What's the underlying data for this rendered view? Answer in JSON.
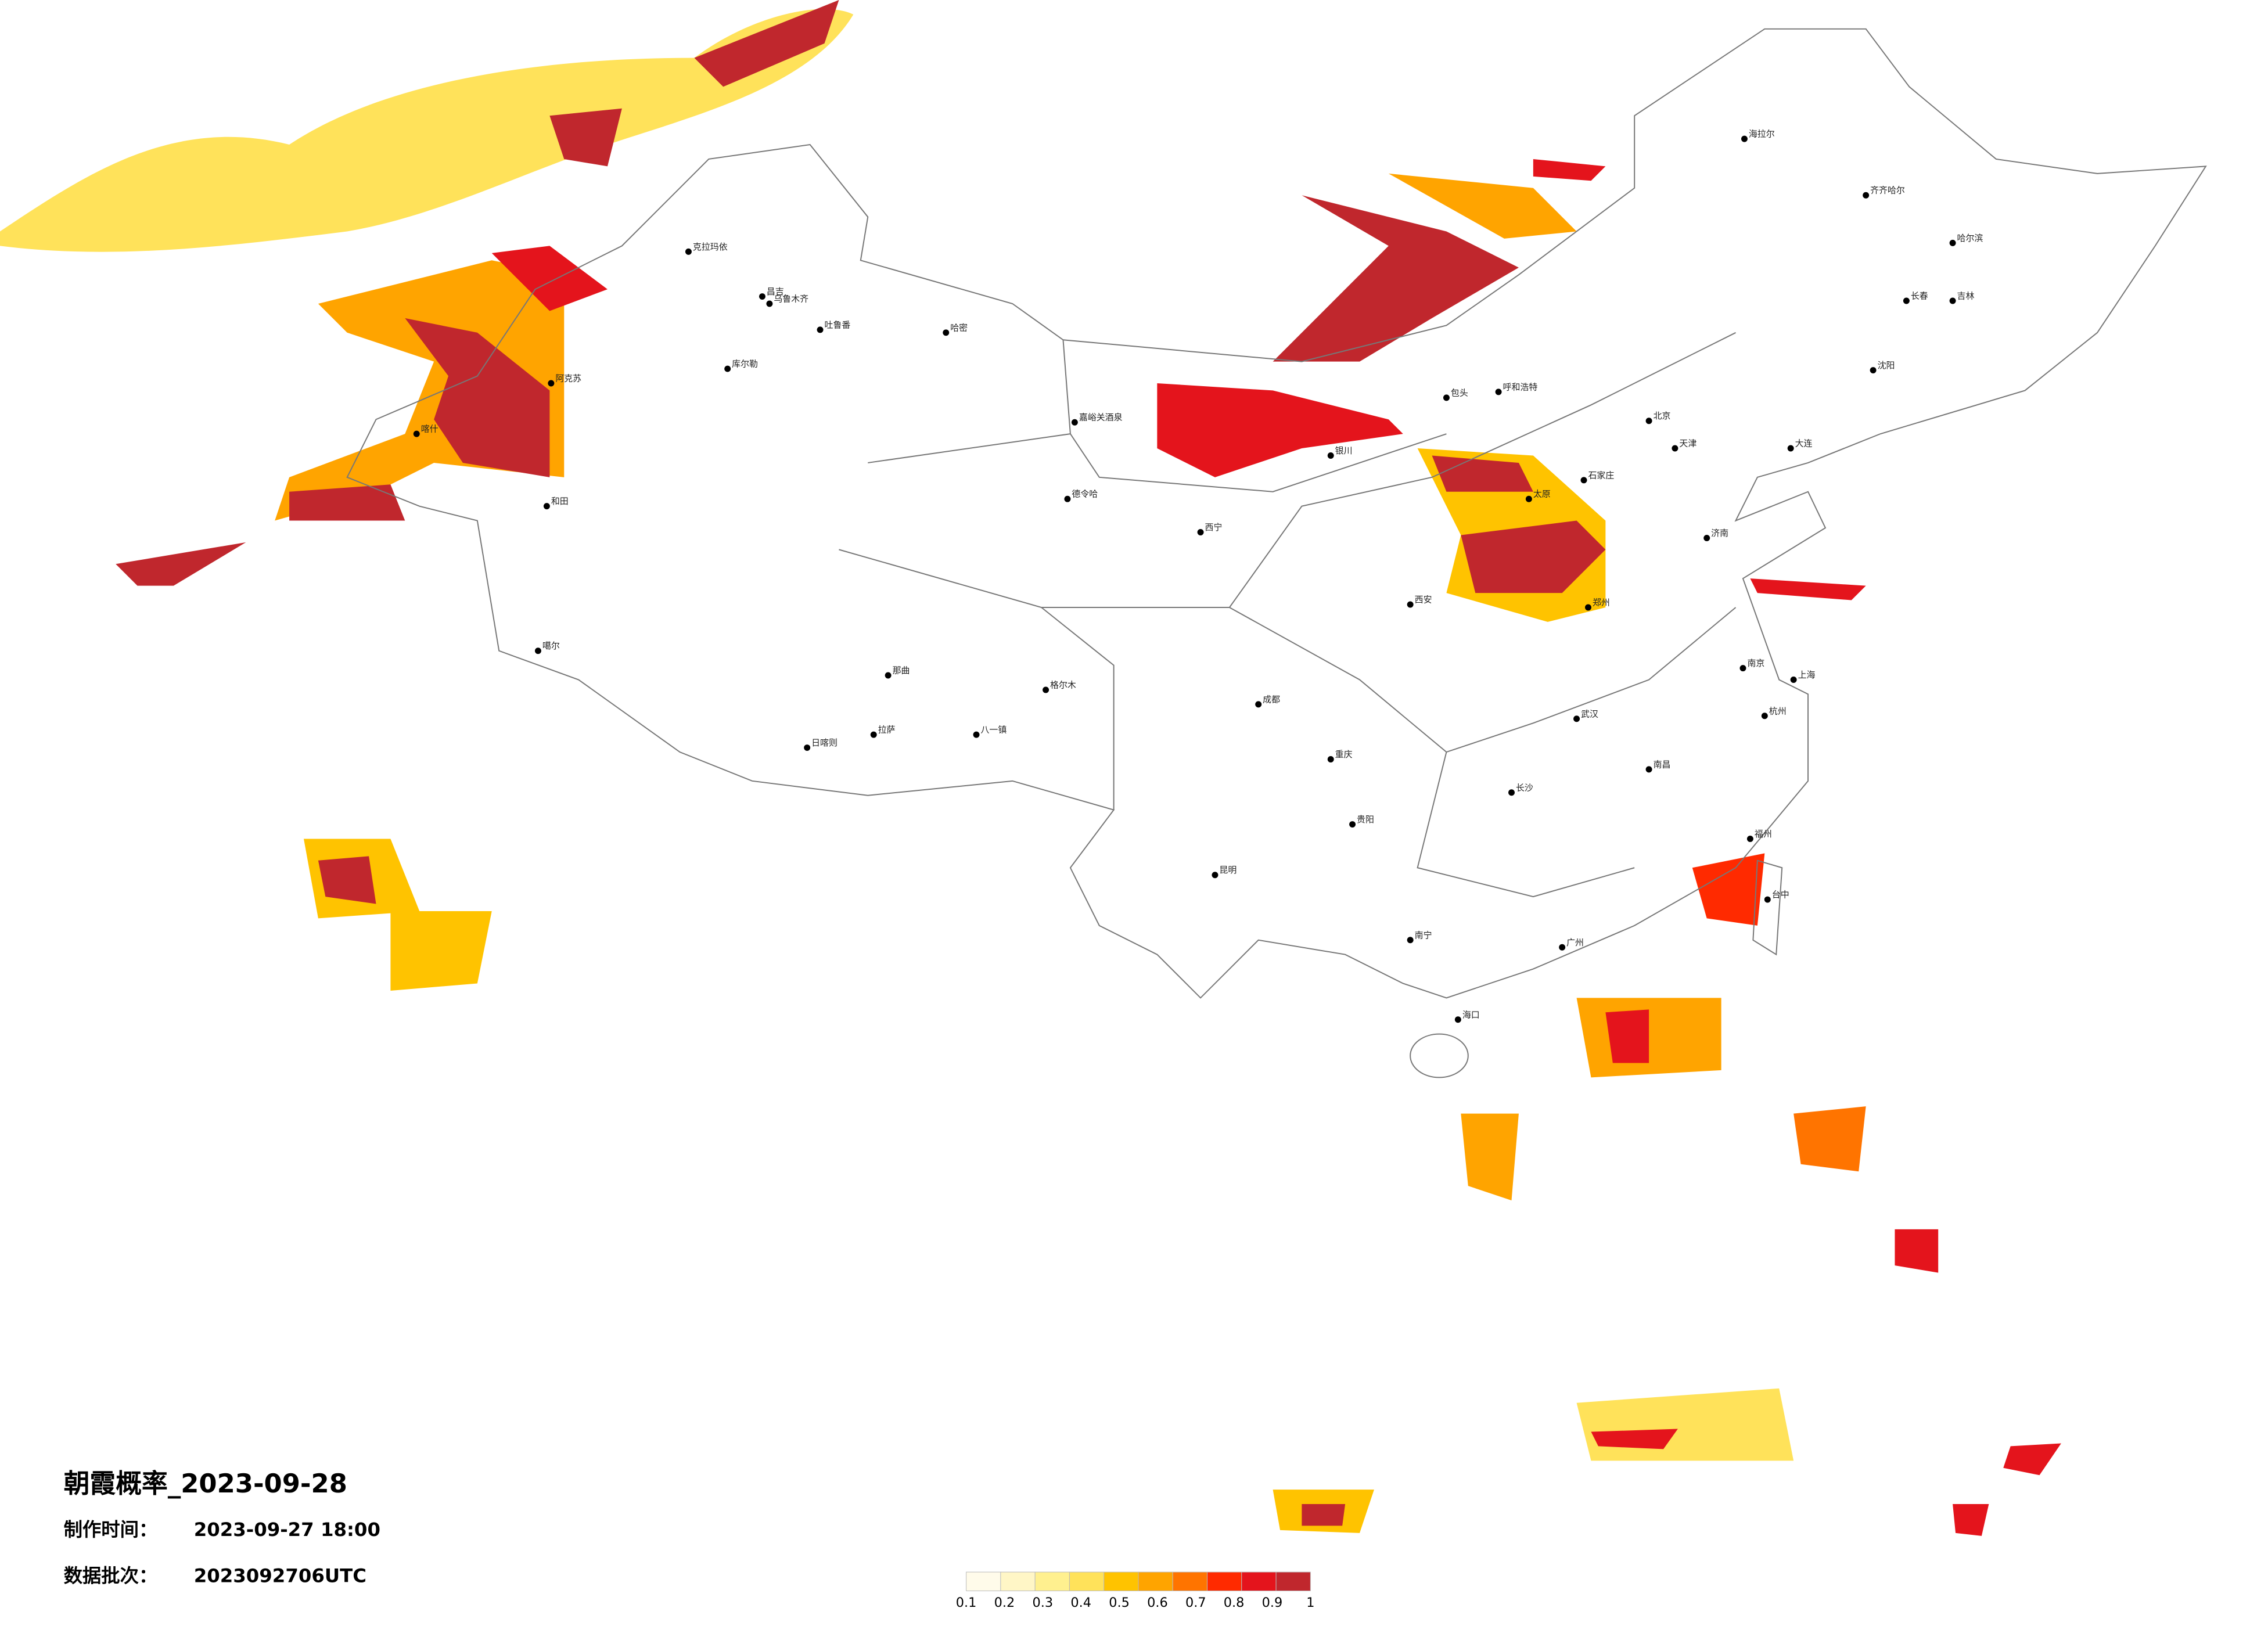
{
  "title": "朝霞概率_2023-09-28",
  "made_time_label": "制作时间：",
  "made_time": "2023-09-27 18:00",
  "batch_label": "数据批次：",
  "batch": "2023092706UTC",
  "legend": {
    "labels": [
      0.1,
      0.2,
      0.3,
      0.4,
      0.5,
      0.6,
      0.7,
      0.8,
      0.9,
      1
    ],
    "colors": [
      "#fffbea",
      "#fff6c6",
      "#fff08f",
      "#ffe25a",
      "#ffc300",
      "#ffa400",
      "#ff7400",
      "#ff2a00",
      "#e4141c",
      "#c0272d"
    ]
  },
  "cities": [
    "克拉玛依",
    "昌吉",
    "乌鲁木齐",
    "吐鲁番",
    "哈密",
    "库尔勒",
    "阿克苏",
    "喀什",
    "和田",
    "噶尔",
    "日喀则",
    "拉萨",
    "八一镇",
    "那曲",
    "格尔木",
    "德令哈",
    "嘉峪关酒泉",
    "海拉尔",
    "齐齐哈尔",
    "哈尔滨",
    "长春",
    "吉林",
    "沈阳",
    "大连",
    "北京",
    "天津",
    "石家庄",
    "太原",
    "呼和浩特",
    "包头",
    "银川",
    "西宁",
    "济南",
    "郑州",
    "西安",
    "成都",
    "重庆",
    "武汉",
    "长沙",
    "南昌",
    "南京",
    "上海",
    "杭州",
    "福州",
    "台中",
    "广州",
    "南宁",
    "海口",
    "昆明",
    "贵阳"
  ]
}
